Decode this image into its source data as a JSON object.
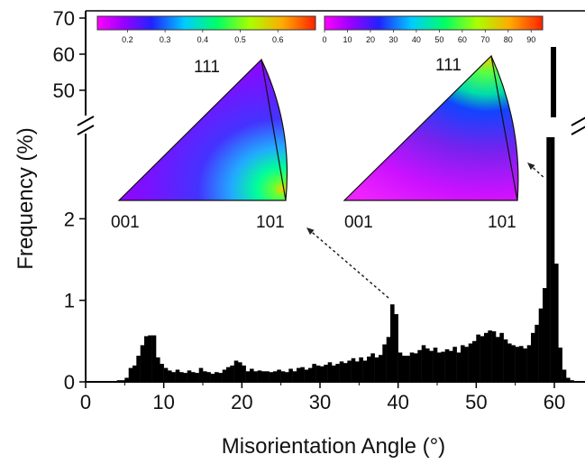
{
  "chart_data": {
    "type": "bar",
    "title": "",
    "xlabel": "Misorientation Angle (°)",
    "ylabel": "Frequency (%)",
    "xlim": [
      0,
      63
    ],
    "x_ticks": [
      0,
      10,
      20,
      30,
      40,
      50,
      60
    ],
    "y_ticks_lower": [
      0,
      1,
      2
    ],
    "y_ticks_upper": [
      50,
      60,
      70
    ],
    "axis_break": {
      "lower_max": 3.1,
      "upper_min": 45,
      "upper_max": 72
    },
    "bin_width": 0.5,
    "bins": [
      [
        4.0,
        0.02
      ],
      [
        4.5,
        0.02
      ],
      [
        5.0,
        0.05
      ],
      [
        5.5,
        0.17
      ],
      [
        6.0,
        0.2
      ],
      [
        6.5,
        0.32
      ],
      [
        7.0,
        0.45
      ],
      [
        7.5,
        0.56
      ],
      [
        8.0,
        0.57
      ],
      [
        8.5,
        0.57
      ],
      [
        9.0,
        0.3
      ],
      [
        9.5,
        0.22
      ],
      [
        10.0,
        0.17
      ],
      [
        10.5,
        0.14
      ],
      [
        11.0,
        0.12
      ],
      [
        11.5,
        0.15
      ],
      [
        12.0,
        0.12
      ],
      [
        12.5,
        0.11
      ],
      [
        13.0,
        0.14
      ],
      [
        13.5,
        0.12
      ],
      [
        14.0,
        0.11
      ],
      [
        14.5,
        0.17
      ],
      [
        15.0,
        0.13
      ],
      [
        15.5,
        0.12
      ],
      [
        16.0,
        0.1
      ],
      [
        16.5,
        0.12
      ],
      [
        17.0,
        0.11
      ],
      [
        17.5,
        0.15
      ],
      [
        18.0,
        0.18
      ],
      [
        18.5,
        0.2
      ],
      [
        19.0,
        0.26
      ],
      [
        19.5,
        0.24
      ],
      [
        20.0,
        0.2
      ],
      [
        20.5,
        0.13
      ],
      [
        21.0,
        0.16
      ],
      [
        21.5,
        0.13
      ],
      [
        22.0,
        0.14
      ],
      [
        22.5,
        0.13
      ],
      [
        23.0,
        0.13
      ],
      [
        23.5,
        0.12
      ],
      [
        24.0,
        0.13
      ],
      [
        24.5,
        0.15
      ],
      [
        25.0,
        0.13
      ],
      [
        25.5,
        0.12
      ],
      [
        26.0,
        0.16
      ],
      [
        26.5,
        0.13
      ],
      [
        27.0,
        0.17
      ],
      [
        27.5,
        0.18
      ],
      [
        28.0,
        0.15
      ],
      [
        28.5,
        0.17
      ],
      [
        29.0,
        0.22
      ],
      [
        29.5,
        0.2
      ],
      [
        30.0,
        0.19
      ],
      [
        30.5,
        0.21
      ],
      [
        31.0,
        0.24
      ],
      [
        31.5,
        0.2
      ],
      [
        32.0,
        0.22
      ],
      [
        32.5,
        0.25
      ],
      [
        33.0,
        0.23
      ],
      [
        33.5,
        0.26
      ],
      [
        34.0,
        0.29
      ],
      [
        34.5,
        0.25
      ],
      [
        35.0,
        0.3
      ],
      [
        35.5,
        0.26
      ],
      [
        36.0,
        0.31
      ],
      [
        36.5,
        0.35
      ],
      [
        37.0,
        0.3
      ],
      [
        37.5,
        0.33
      ],
      [
        38.0,
        0.46
      ],
      [
        38.5,
        0.55
      ],
      [
        39.0,
        0.95
      ],
      [
        39.5,
        0.83
      ],
      [
        40.0,
        0.36
      ],
      [
        40.5,
        0.32
      ],
      [
        41.0,
        0.32
      ],
      [
        41.5,
        0.36
      ],
      [
        42.0,
        0.35
      ],
      [
        42.5,
        0.39
      ],
      [
        43.0,
        0.45
      ],
      [
        43.5,
        0.41
      ],
      [
        44.0,
        0.38
      ],
      [
        44.5,
        0.42
      ],
      [
        45.0,
        0.36
      ],
      [
        45.5,
        0.37
      ],
      [
        46.0,
        0.4
      ],
      [
        46.5,
        0.38
      ],
      [
        47.0,
        0.43
      ],
      [
        47.5,
        0.36
      ],
      [
        48.0,
        0.45
      ],
      [
        48.5,
        0.43
      ],
      [
        49.0,
        0.47
      ],
      [
        49.5,
        0.5
      ],
      [
        50.0,
        0.58
      ],
      [
        50.5,
        0.56
      ],
      [
        51.0,
        0.6
      ],
      [
        51.5,
        0.63
      ],
      [
        52.0,
        0.62
      ],
      [
        52.5,
        0.55
      ],
      [
        53.0,
        0.6
      ],
      [
        53.5,
        0.52
      ],
      [
        54.0,
        0.47
      ],
      [
        54.5,
        0.45
      ],
      [
        55.0,
        0.43
      ],
      [
        55.5,
        0.44
      ],
      [
        56.0,
        0.41
      ],
      [
        56.5,
        0.45
      ],
      [
        57.0,
        0.6
      ],
      [
        57.5,
        0.7
      ],
      [
        58.0,
        0.9
      ],
      [
        58.5,
        1.15
      ],
      [
        59.0,
        3.0
      ],
      [
        59.5,
        3.0
      ],
      [
        60.0,
        1.45
      ],
      [
        60.5,
        0.42
      ],
      [
        61.0,
        0.15
      ],
      [
        61.5,
        0.05
      ],
      [
        62.0,
        0.02
      ]
    ],
    "peak_bar": {
      "x": 60.0,
      "top": 62
    },
    "insets": [
      {
        "colorbar_ticks": [
          "0.2",
          "0.3",
          "0.4",
          "0.5",
          "0.6"
        ],
        "colorbar_range": [
          0.12,
          0.7
        ],
        "corners": {
          "top": "111",
          "left": "001",
          "right": "101"
        },
        "points_to_x": 39.0
      },
      {
        "colorbar_ticks": [
          "0",
          "10",
          "20",
          "30",
          "40",
          "50",
          "60",
          "70",
          "80",
          "90"
        ],
        "colorbar_range": [
          0,
          95
        ],
        "corners": {
          "top": "111",
          "left": "001",
          "right": "101"
        },
        "points_to_x": 59.5
      }
    ],
    "colors": {
      "bars": "#000000",
      "axis": "#000000",
      "arrow": "#222222"
    }
  }
}
